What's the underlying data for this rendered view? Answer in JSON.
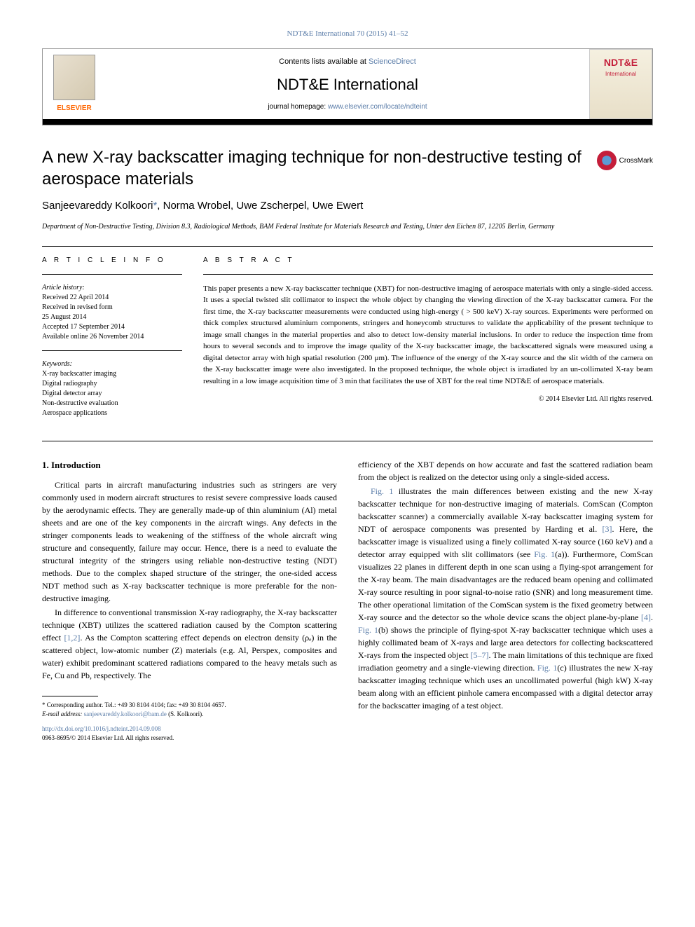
{
  "journal_ref": "NDT&E International 70 (2015) 41–52",
  "header": {
    "contents_text": "Contents lists available at ",
    "contents_link": "ScienceDirect",
    "journal_name": "NDT&E International",
    "homepage_text": "journal homepage: ",
    "homepage_link": "www.elsevier.com/locate/ndteint",
    "elsevier_label": "ELSEVIER",
    "cover_title": "NDT&E",
    "cover_subtitle": "International"
  },
  "title": "A new X-ray backscatter imaging technique for non-destructive testing of aerospace materials",
  "crossmark_label": "CrossMark",
  "authors_html": "Sanjeevareddy Kolkoori",
  "authors_rest": ", Norma Wrobel, Uwe Zscherpel, Uwe Ewert",
  "corr_symbol": "*",
  "affiliation": "Department of Non-Destructive Testing, Division 8.3, Radiological Methods, BAM Federal Institute for Materials Research and Testing, Unter den Eichen 87, 12205 Berlin, Germany",
  "article_info_label": "A R T I C L E  I N F O",
  "abstract_label": "A B S T R A C T",
  "history": {
    "heading": "Article history:",
    "received": "Received 22 April 2014",
    "revised": "Received in revised form",
    "revised_date": "25 August 2014",
    "accepted": "Accepted 17 September 2014",
    "online": "Available online 26 November 2014"
  },
  "keywords": {
    "heading": "Keywords:",
    "items": [
      "X-ray backscatter imaging",
      "Digital radiography",
      "Digital detector array",
      "Non-destructive evaluation",
      "Aerospace applications"
    ]
  },
  "abstract": "This paper presents a new X-ray backscatter technique (XBT) for non-destructive imaging of aerospace materials with only a single-sided access. It uses a special twisted slit collimator to inspect the whole object by changing the viewing direction of the X-ray backscatter camera. For the first time, the X-ray backscatter measurements were conducted using high-energy ( > 500 keV) X-ray sources. Experiments were performed on thick complex structured aluminium components, stringers and honeycomb structures to validate the applicability of the present technique to image small changes in the material properties and also to detect low-density material inclusions. In order to reduce the inspection time from hours to several seconds and to improve the image quality of the X-ray backscatter image, the backscattered signals were measured using a digital detector array with high spatial resolution (200 μm). The influence of the energy of the X-ray source and the slit width of the camera on the X-ray backscatter image were also investigated. In the proposed technique, the whole object is irradiated by an un-collimated X-ray beam resulting in a low image acquisition time of 3 min that facilitates the use of XBT for the real time NDT&E of aerospace materials.",
  "copyright": "© 2014 Elsevier Ltd. All rights reserved.",
  "intro_heading": "1.  Introduction",
  "intro_p1": "Critical parts in aircraft manufacturing industries such as stringers are very commonly used in modern aircraft structures to resist severe compressive loads caused by the aerodynamic effects. They are generally made-up of thin aluminium (Al) metal sheets and are one of the key components in the aircraft wings. Any defects in the stringer components leads to weakening of the stiffness of the whole aircraft wing structure and consequently, failure may occur. Hence, there is a need to evaluate the structural integrity of the stringers using reliable non-destructive testing (NDT) methods. Due to the complex shaped structure of the stringer, the one-sided access NDT method such as X-ray backscatter technique is more preferable for the non-destructive imaging.",
  "intro_p2_a": "In difference to conventional transmission X-ray radiography, the X-ray backscatter technique (XBT) utilizes the scattered radiation caused by the Compton scattering effect ",
  "intro_p2_ref1": "[1,2]",
  "intro_p2_b": ". As the Compton scattering effect depends on electron density (ρₑ) in the scattered object, low-atomic number (Z) materials (e.g. Al, Perspex, composites and water) exhibit predominant scattered radiations compared to the heavy metals such as Fe, Cu and Pb, respectively. The",
  "col2_p1": "efficiency of the XBT depends on how accurate and fast the scattered radiation beam from the object is realized on the detector using only a single-sided access.",
  "col2_p2_a": "Fig. 1",
  "col2_p2_b": " illustrates the main differences between existing and the new X-ray backscatter technique for non-destructive imaging of materials. ComScan (Compton backscatter scanner) a commercially available X-ray backscatter imaging system for NDT of aerospace components was presented by Harding et al. ",
  "col2_p2_ref3": "[3]",
  "col2_p2_c": ". Here, the backscatter image is visualized using a finely collimated X-ray source (160 keV) and a detector array equipped with slit collimators (see ",
  "col2_p2_fig1a": "Fig. 1",
  "col2_p2_d": "(a)). Furthermore, ComScan visualizes 22 planes in different depth in one scan using a flying-spot arrangement for the X-ray beam. The main disadvantages are the reduced beam opening and collimated X-ray source resulting in poor signal-to-noise ratio (SNR) and long measurement time. The other operational limitation of the ComScan system is the fixed geometry between X-ray source and the detector so the whole device scans the object plane-by-plane ",
  "col2_p2_ref4": "[4]",
  "col2_p2_e": ". ",
  "col2_p2_fig1b": "Fig. 1",
  "col2_p2_f": "(b) shows the principle of flying-spot X-ray backscatter technique which uses a highly collimated beam of X-rays and large area detectors for collecting backscattered X-rays from the inspected object ",
  "col2_p2_ref57": "[5–7]",
  "col2_p2_g": ". The main limitations of this technique are fixed irradiation geometry and a single-viewing direction. ",
  "col2_p2_fig1c": "Fig. 1",
  "col2_p2_h": "(c) illustrates the new X-ray backscatter imaging technique which uses an uncollimated powerful (high kW) X-ray beam along with an efficient pinhole camera encompassed with a digital detector array for the backscatter imaging of a test object.",
  "footnote": {
    "corr": "* Corresponding author. Tel.: +49 30 8104 4104; fax: +49 30 8104 4657.",
    "email_label": "E-mail address: ",
    "email": "sanjeevareddy.kolkoori@bam.de",
    "email_who": " (S. Kolkoori)."
  },
  "doi": {
    "url": "http://dx.doi.org/10.1016/j.ndteint.2014.09.008",
    "issn": "0963-8695/© 2014 Elsevier Ltd. All rights reserved."
  },
  "colors": {
    "link": "#5a7ca8",
    "elsevier_orange": "#ff6600",
    "crossmark_red": "#c41e3a"
  }
}
